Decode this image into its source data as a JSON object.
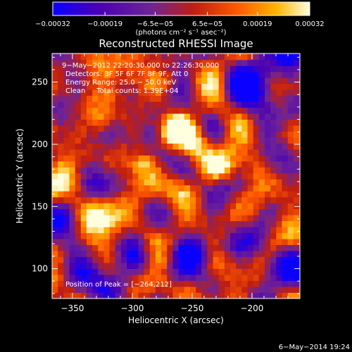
{
  "chart_data": {
    "type": "heatmap",
    "title": "Reconstructed RHESSI Image",
    "xlabel": "Heliocentric X (arcsec)",
    "ylabel": "Heliocentric Y (arcsec)",
    "xlim": [
      -367,
      -160
    ],
    "ylim": [
      76,
      273
    ],
    "x_ticks": [
      -350,
      -300,
      -250,
      -200
    ],
    "x_tick_labels": [
      "−350",
      "−300",
      "−250",
      "−200"
    ],
    "y_ticks": [
      100,
      150,
      200,
      250
    ],
    "y_tick_labels": [
      "100",
      "150",
      "200",
      "250"
    ],
    "colorbar": {
      "min": -0.00032,
      "max": 0.00032,
      "ticks": [
        -0.00032,
        -0.00019,
        -6.5e-05,
        6.5e-05,
        0.00019,
        0.00032
      ],
      "tick_labels": [
        "−0.00032",
        "−0.00019",
        "−6.5e−05",
        "6.5e−05",
        "0.00019",
        "0.00032"
      ],
      "unit_label": "(photons cm⁻² s⁻¹ asec⁻²)",
      "colormap": [
        "#0a00ff",
        "#4b00b4",
        "#6e2496",
        "#c01e10",
        "#ff5a00",
        "#ffb400",
        "#ffffe0"
      ]
    },
    "annotations": [
      "9−May−2012 22:20:30.000 to 22:26:30.000",
      "Detectors: 3F 5F 6F 7F 8F 9F, Att 0",
      "Energy Range: 25.0 − 50.0 keV",
      "Clean     Total counts: 1.39E+04"
    ],
    "peak_label": "Position of Peak = [−264,212]",
    "peak": [
      -264,
      212
    ],
    "footer_date": "6−May−2014 19:24",
    "grid": false
  }
}
